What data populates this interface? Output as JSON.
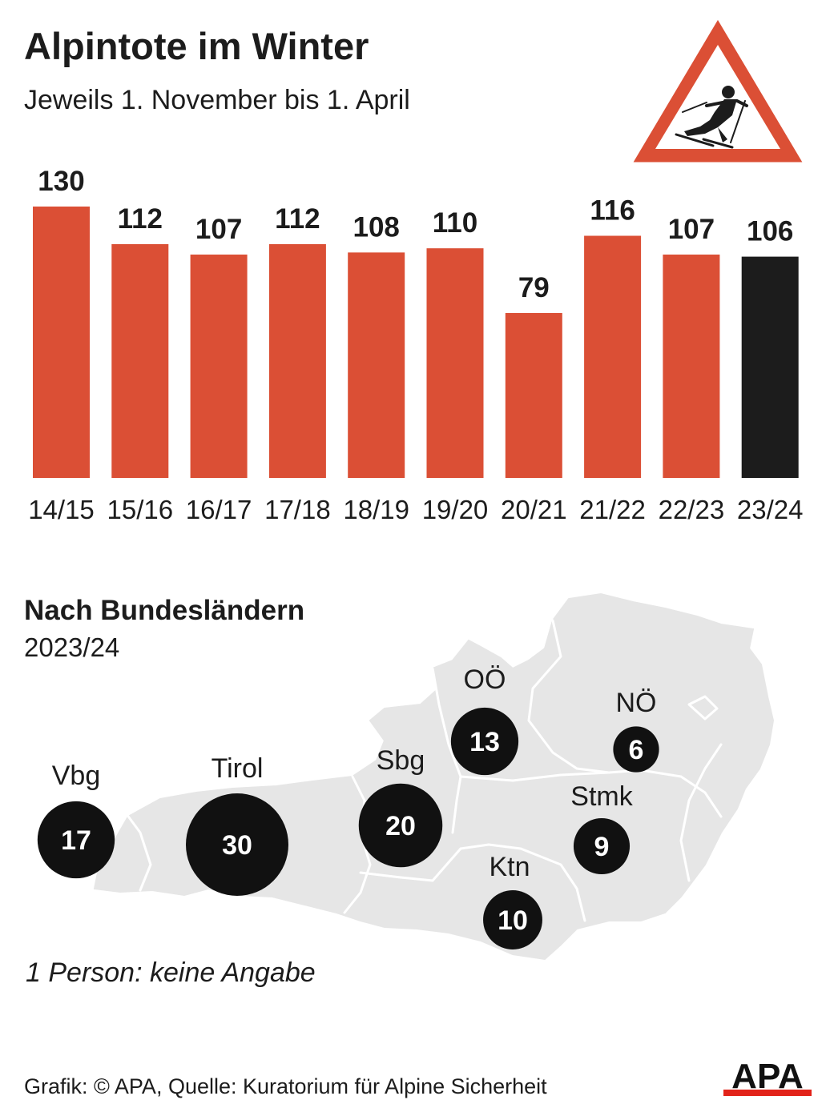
{
  "header": {
    "title": "Alpintote im Winter",
    "subtitle": "Jeweils 1. November bis 1. April"
  },
  "chart_data": {
    "type": "bar",
    "title": "Alpintote im Winter",
    "subtitle": "Jeweils 1. November bis 1. April",
    "categories": [
      "14/15",
      "15/16",
      "16/17",
      "17/18",
      "18/19",
      "19/20",
      "20/21",
      "21/22",
      "22/23",
      "23/24"
    ],
    "values": [
      130,
      112,
      107,
      112,
      108,
      110,
      79,
      116,
      107,
      106
    ],
    "xlabel": "",
    "ylabel": "",
    "ylim": [
      0,
      130
    ],
    "grid": false,
    "colors": {
      "bar": "#db4f35",
      "highlight": "#1c1c1c"
    },
    "highlight_category": "23/24"
  },
  "map_section": {
    "title": "Nach Bundesländern",
    "subtitle": "2023/24",
    "states": [
      {
        "label": "Vbg",
        "value": 17
      },
      {
        "label": "Tirol",
        "value": 30
      },
      {
        "label": "Sbg",
        "value": 20
      },
      {
        "label": "OÖ",
        "value": 13
      },
      {
        "label": "NÖ",
        "value": 6
      },
      {
        "label": "Stmk",
        "value": 9
      },
      {
        "label": "Ktn",
        "value": 10
      }
    ],
    "colors": {
      "land": "#e6e6e6",
      "border": "#ffffff",
      "bubble": "#111111"
    }
  },
  "footnote": "1 Person: keine Angabe",
  "source": "Grafik: © APA, Quelle: Kuratorium für Alpine Sicherheit",
  "logo": {
    "text": "APA",
    "accent": "#e2231a"
  },
  "icons": {
    "warning": "skier-warning-sign-icon",
    "logo": "apa-logo"
  },
  "colors": {
    "sign_red": "#db4f35",
    "text": "#1c1c1c"
  }
}
